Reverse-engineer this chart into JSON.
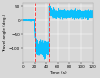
{
  "title": "",
  "xlabel": "Time (s)",
  "ylabel": "Travel angle (deg.)",
  "xlim": [
    0,
    120
  ],
  "ylim": [
    -150,
    60
  ],
  "yticks": [
    -100,
    -50,
    0,
    50
  ],
  "xticks": [
    0,
    20,
    40,
    60,
    80,
    100,
    120
  ],
  "grid": true,
  "bg_color": "#d8d8d8",
  "signal_color": "#00bfff",
  "vline_color": "#ff3333",
  "vline_positions": [
    20,
    45
  ],
  "noise_amplitude_1": 12,
  "noise_amplitude_2": 6,
  "phase1_level": 0,
  "phase2_level": -100,
  "phase3_level": 22,
  "overshoot_level": 48,
  "figsize": [
    1.0,
    0.78
  ],
  "dpi": 100
}
